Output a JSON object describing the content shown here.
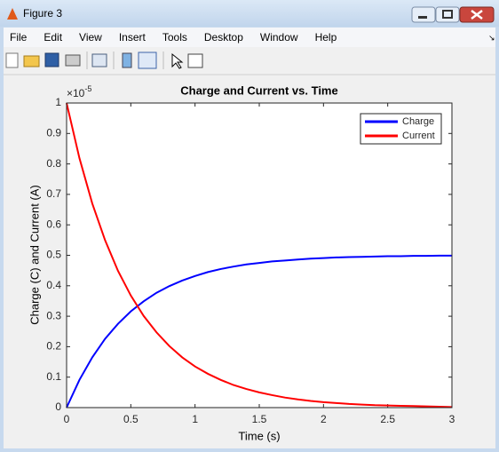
{
  "window": {
    "title": "Figure 3",
    "menu": [
      "File",
      "Edit",
      "View",
      "Insert",
      "Tools",
      "Desktop",
      "Window",
      "Help"
    ]
  },
  "chart_data": {
    "type": "line",
    "title": "Charge and Current vs. Time",
    "x_label": "Time (s)",
    "y_label": "Charge (C) and Current (A)",
    "y_multiplier_base": "×10",
    "y_multiplier_exponent": "-5",
    "x": [
      0,
      0.1,
      0.2,
      0.3,
      0.4,
      0.5,
      0.6,
      0.7,
      0.8,
      0.9,
      1,
      1.1,
      1.2,
      1.3,
      1.4,
      1.5,
      1.6,
      1.7,
      1.8,
      1.9,
      2,
      2.1,
      2.2,
      2.3,
      2.4,
      2.5,
      2.6,
      2.7,
      2.8,
      2.9,
      3
    ],
    "series": [
      {
        "name": "Charge",
        "color": "#0000ff",
        "values": [
          0,
          0.091,
          0.165,
          0.226,
          0.275,
          0.316,
          0.349,
          0.377,
          0.399,
          0.417,
          0.432,
          0.445,
          0.455,
          0.463,
          0.47,
          0.475,
          0.48,
          0.483,
          0.486,
          0.489,
          0.491,
          0.493,
          0.494,
          0.495,
          0.496,
          0.497,
          0.497,
          0.498,
          0.498,
          0.499,
          0.499
        ]
      },
      {
        "name": "Current",
        "color": "#ff0000",
        "values": [
          1,
          0.819,
          0.67,
          0.549,
          0.449,
          0.368,
          0.301,
          0.247,
          0.202,
          0.165,
          0.135,
          0.111,
          0.091,
          0.074,
          0.061,
          0.05,
          0.041,
          0.033,
          0.027,
          0.022,
          0.018,
          0.015,
          0.012,
          0.01,
          0.008,
          0.007,
          0.006,
          0.005,
          0.004,
          0.003,
          0.002
        ]
      }
    ],
    "xlim": [
      0,
      3
    ],
    "xticks": [
      0,
      0.5,
      1,
      1.5,
      2,
      2.5,
      3
    ],
    "ylim": [
      0,
      1
    ],
    "yticks": [
      0,
      0.1,
      0.2,
      0.3,
      0.4,
      0.5,
      0.6,
      0.7,
      0.8,
      0.9,
      1
    ],
    "grid": false,
    "legend": "top-right"
  }
}
